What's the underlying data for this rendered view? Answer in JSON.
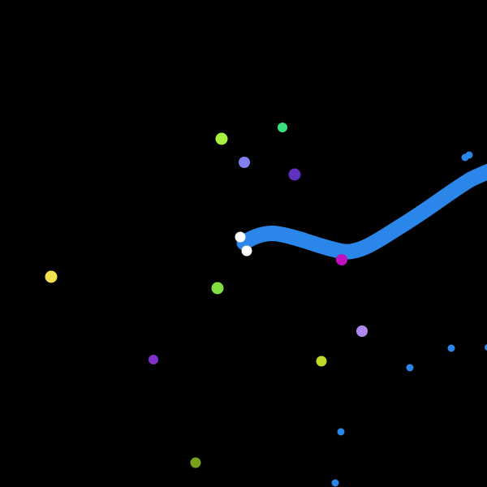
{
  "game": {
    "background_color": "#000000",
    "player_snake": {
      "color": "#2a86e8",
      "eye_color": "#ffffff",
      "direction": "left"
    },
    "food_colors": [
      "#a8f040",
      "#3ae07a",
      "#8080f0",
      "#6030c0",
      "#f4e050",
      "#80e040",
      "#b088f0",
      "#c0d828",
      "#8030c8",
      "#78a018",
      "#c010c0"
    ],
    "other_snake_color": "#2a86e8"
  }
}
